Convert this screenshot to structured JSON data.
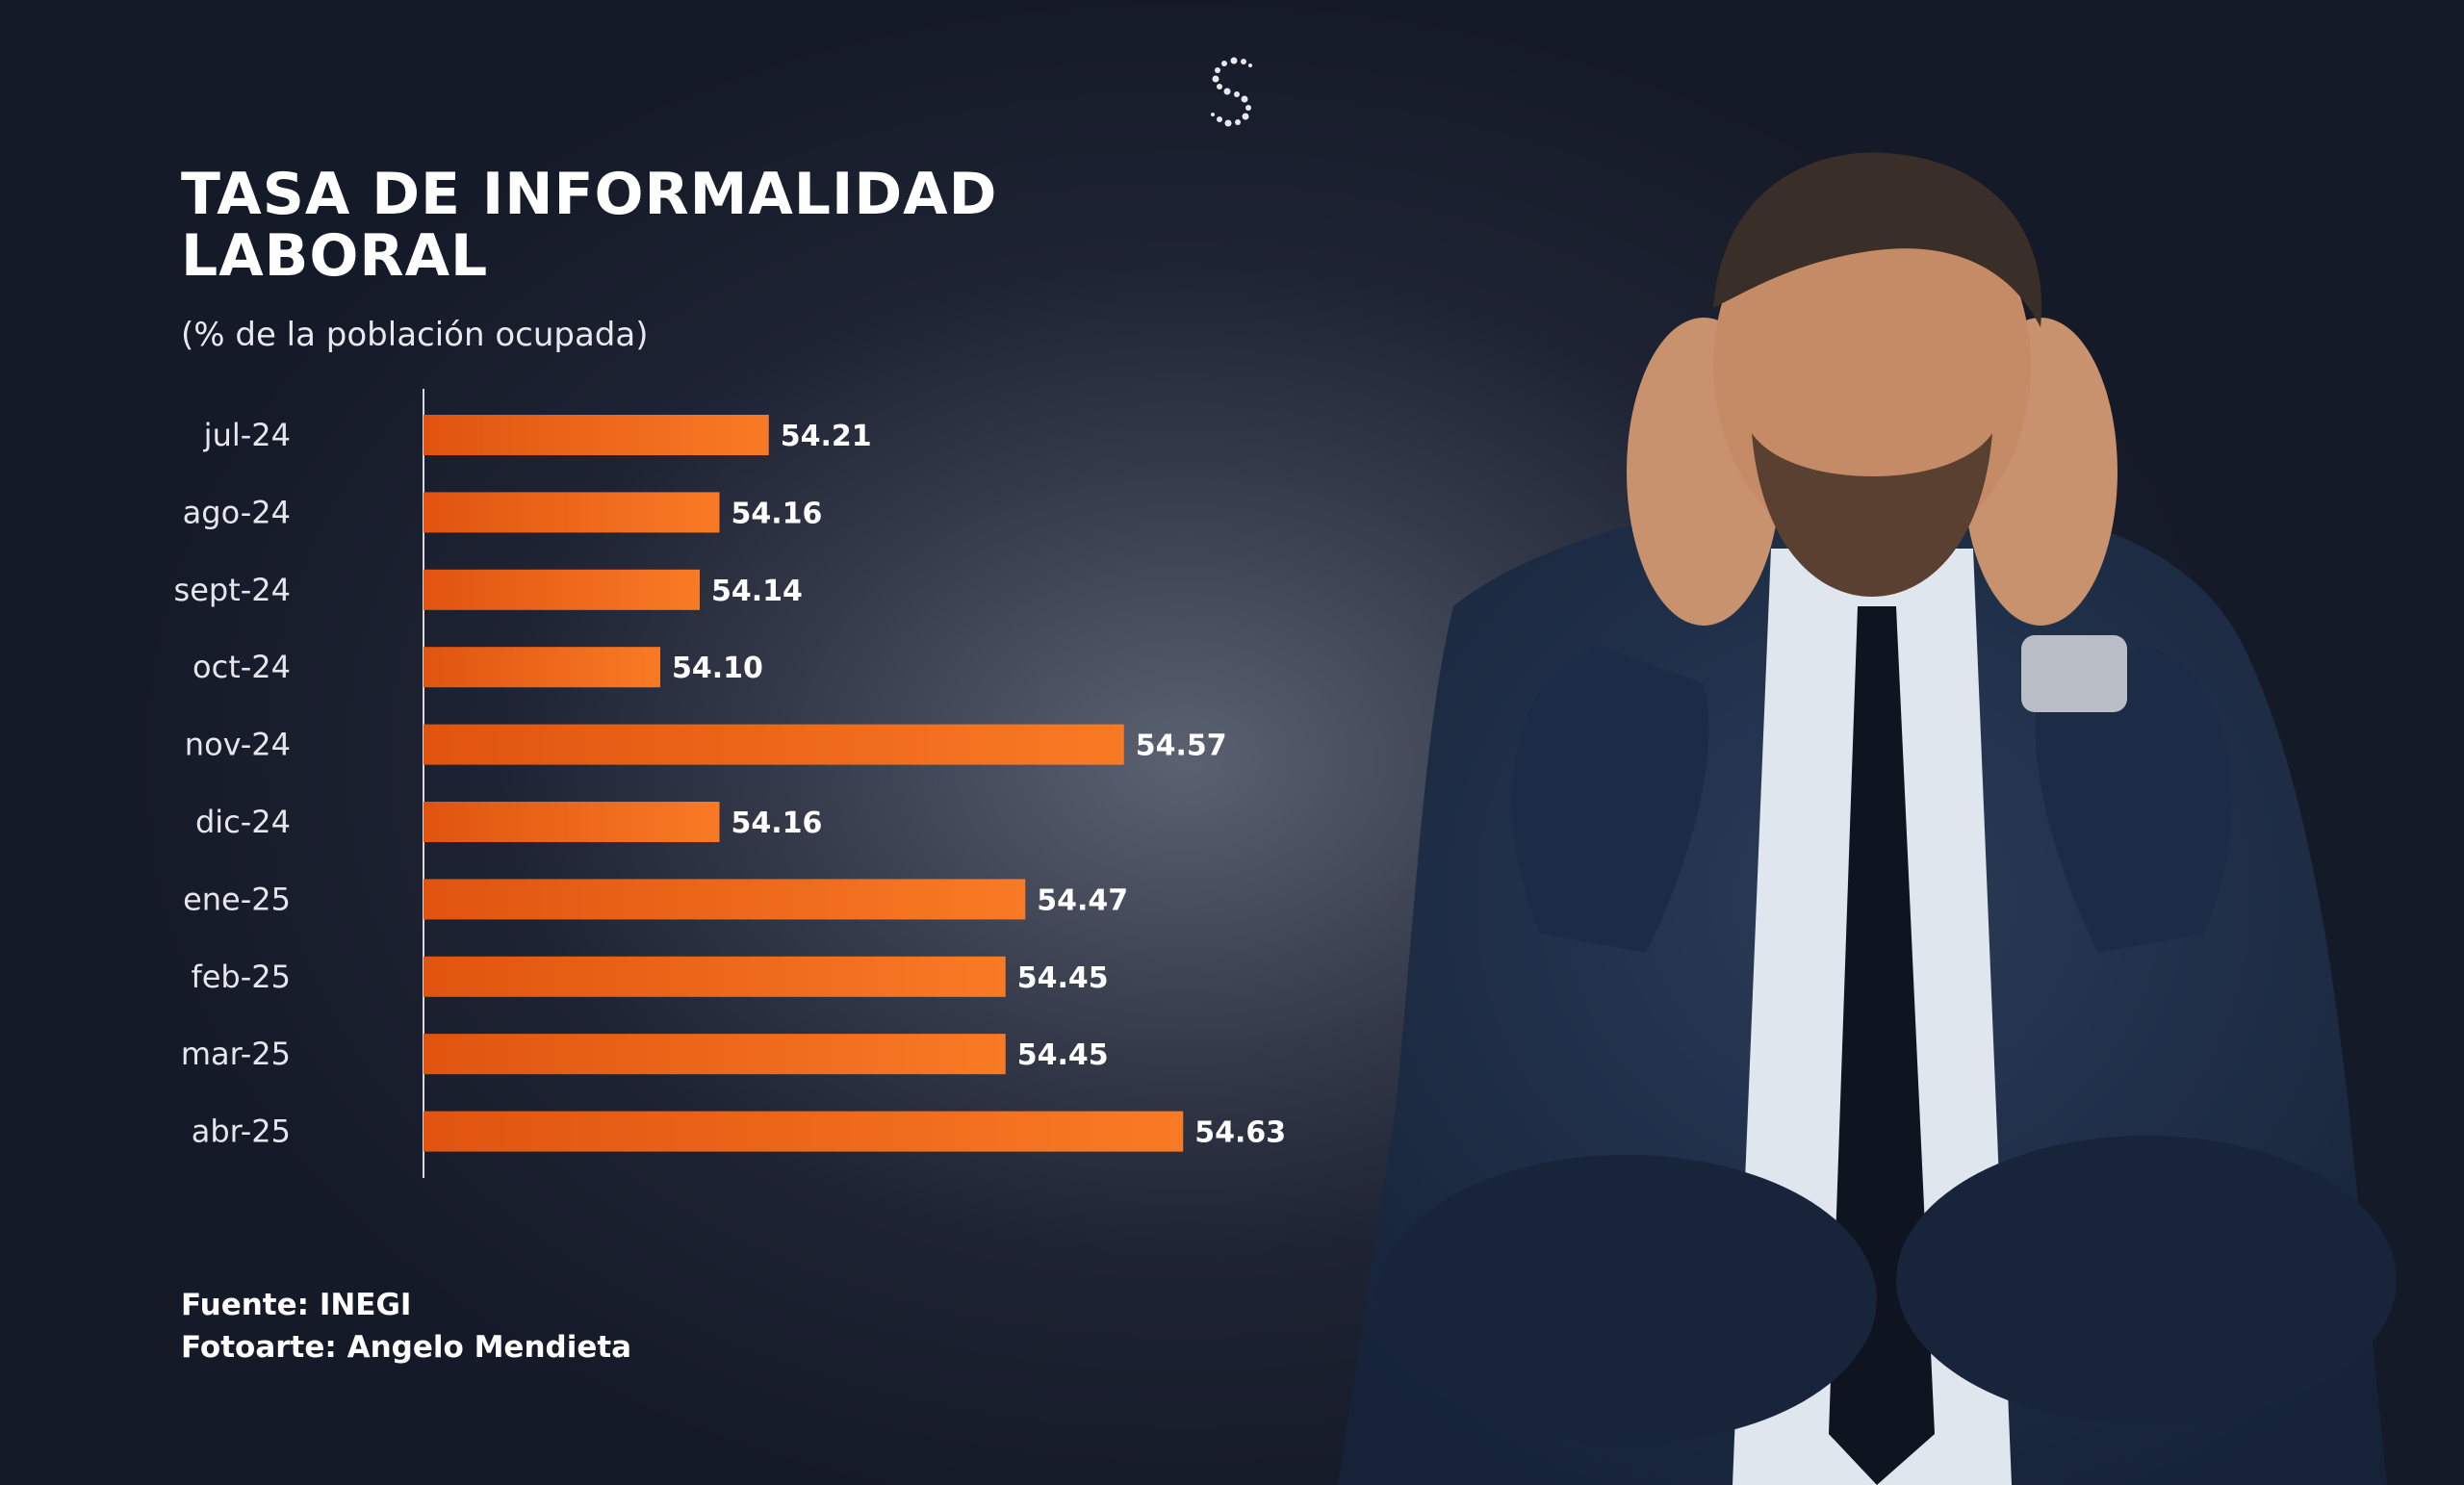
{
  "title_lines": [
    "TASA DE INFORMALIDAD",
    "LABORAL"
  ],
  "subtitle": "(% de la población ocupada)",
  "logo_icon": "s-dotted-logo-icon",
  "colors": {
    "bar_start": "#e0540f",
    "bar_end": "#f97a25",
    "axis": "#d8d8de"
  },
  "chart_data": {
    "type": "bar",
    "orientation": "horizontal",
    "title": "TASA DE INFORMALIDAD LABORAL",
    "subtitle": "(% de la población ocupada)",
    "categories": [
      "jul-24",
      "ago-24",
      "sept-24",
      "oct-24",
      "nov-24",
      "dic-24",
      "ene-25",
      "feb-25",
      "mar-25",
      "abr-25"
    ],
    "values": [
      54.21,
      54.16,
      54.14,
      54.1,
      54.57,
      54.16,
      54.47,
      54.45,
      54.45,
      54.63
    ],
    "value_labels": [
      "54.21",
      "54.16",
      "54.14",
      "54.10",
      "54.57",
      "54.16",
      "54.47",
      "54.45",
      "54.45",
      "54.63"
    ],
    "grid": false,
    "legend": "none"
  },
  "footer": {
    "source": "Fuente: INEGI",
    "credit": "Fotoarte: Angelo Mendieta"
  },
  "photo_icon": "worried-businessman-photo"
}
